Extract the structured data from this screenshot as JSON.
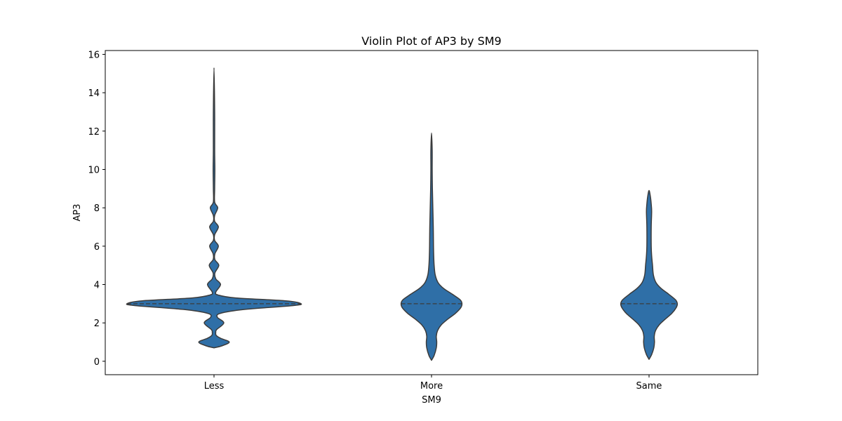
{
  "chart_data": {
    "type": "violin",
    "title": "Violin Plot of AP3 by SM9",
    "xlabel": "SM9",
    "ylabel": "AP3",
    "categories": [
      "Less",
      "More",
      "Same"
    ],
    "ylim": [
      -0.7,
      16.2
    ],
    "yticks": [
      0,
      2,
      4,
      6,
      8,
      10,
      12,
      14,
      16
    ],
    "ytick_labels": [
      "0",
      "2",
      "4",
      "6",
      "8",
      "10",
      "12",
      "14",
      "16"
    ],
    "grid": false,
    "fill_color": "#2f6fa7",
    "edge_color": "#3b3b3b",
    "violins": [
      {
        "category": "Less",
        "min": 0.7,
        "max": 15.3,
        "median": 3.0,
        "max_half_width": 0.4,
        "density_profile": [
          [
            0.7,
            0.0
          ],
          [
            0.8,
            0.035
          ],
          [
            1.0,
            0.07
          ],
          [
            1.2,
            0.03
          ],
          [
            1.35,
            0.01
          ],
          [
            1.5,
            0.008
          ],
          [
            1.65,
            0.012
          ],
          [
            2.0,
            0.045
          ],
          [
            2.3,
            0.015
          ],
          [
            2.5,
            0.03
          ],
          [
            2.7,
            0.14
          ],
          [
            2.9,
            0.36
          ],
          [
            3.0,
            0.4
          ],
          [
            3.15,
            0.33
          ],
          [
            3.3,
            0.1
          ],
          [
            3.45,
            0.02
          ],
          [
            3.6,
            0.008
          ],
          [
            4.0,
            0.03
          ],
          [
            4.3,
            0.008
          ],
          [
            4.6,
            0.004
          ],
          [
            5.0,
            0.022
          ],
          [
            5.3,
            0.004
          ],
          [
            5.6,
            0.004
          ],
          [
            6.0,
            0.02
          ],
          [
            6.3,
            0.003
          ],
          [
            6.6,
            0.003
          ],
          [
            7.0,
            0.02
          ],
          [
            7.3,
            0.003
          ],
          [
            7.6,
            0.003
          ],
          [
            8.0,
            0.017
          ],
          [
            8.3,
            0.003
          ],
          [
            9.0,
            0.003
          ],
          [
            10.0,
            0.004
          ],
          [
            11.0,
            0.003
          ],
          [
            13.0,
            0.003
          ],
          [
            15.3,
            0.0
          ]
        ]
      },
      {
        "category": "More",
        "min": 0.05,
        "max": 11.9,
        "median": 3.0,
        "max_half_width": 0.14,
        "density_profile": [
          [
            0.05,
            0.0
          ],
          [
            0.3,
            0.012
          ],
          [
            0.7,
            0.022
          ],
          [
            1.0,
            0.024
          ],
          [
            1.3,
            0.022
          ],
          [
            1.6,
            0.028
          ],
          [
            1.9,
            0.045
          ],
          [
            2.2,
            0.075
          ],
          [
            2.5,
            0.11
          ],
          [
            2.8,
            0.135
          ],
          [
            3.0,
            0.14
          ],
          [
            3.2,
            0.132
          ],
          [
            3.5,
            0.095
          ],
          [
            3.8,
            0.055
          ],
          [
            4.1,
            0.03
          ],
          [
            4.5,
            0.017
          ],
          [
            5.0,
            0.012
          ],
          [
            5.5,
            0.01
          ],
          [
            6.0,
            0.009
          ],
          [
            7.0,
            0.008
          ],
          [
            8.0,
            0.006
          ],
          [
            9.0,
            0.004
          ],
          [
            10.0,
            0.003
          ],
          [
            11.0,
            0.003
          ],
          [
            11.9,
            0.0
          ]
        ]
      },
      {
        "category": "Same",
        "min": 0.1,
        "max": 8.9,
        "median": 3.0,
        "max_half_width": 0.13,
        "density_profile": [
          [
            0.1,
            0.0
          ],
          [
            0.35,
            0.012
          ],
          [
            0.7,
            0.022
          ],
          [
            1.0,
            0.025
          ],
          [
            1.3,
            0.024
          ],
          [
            1.6,
            0.03
          ],
          [
            1.9,
            0.047
          ],
          [
            2.2,
            0.075
          ],
          [
            2.5,
            0.105
          ],
          [
            2.8,
            0.125
          ],
          [
            3.0,
            0.13
          ],
          [
            3.2,
            0.122
          ],
          [
            3.5,
            0.09
          ],
          [
            3.8,
            0.055
          ],
          [
            4.1,
            0.032
          ],
          [
            4.5,
            0.02
          ],
          [
            5.0,
            0.016
          ],
          [
            5.5,
            0.012
          ],
          [
            6.0,
            0.01
          ],
          [
            7.0,
            0.01
          ],
          [
            7.8,
            0.012
          ],
          [
            8.2,
            0.01
          ],
          [
            8.6,
            0.006
          ],
          [
            8.9,
            0.0
          ]
        ]
      }
    ]
  }
}
